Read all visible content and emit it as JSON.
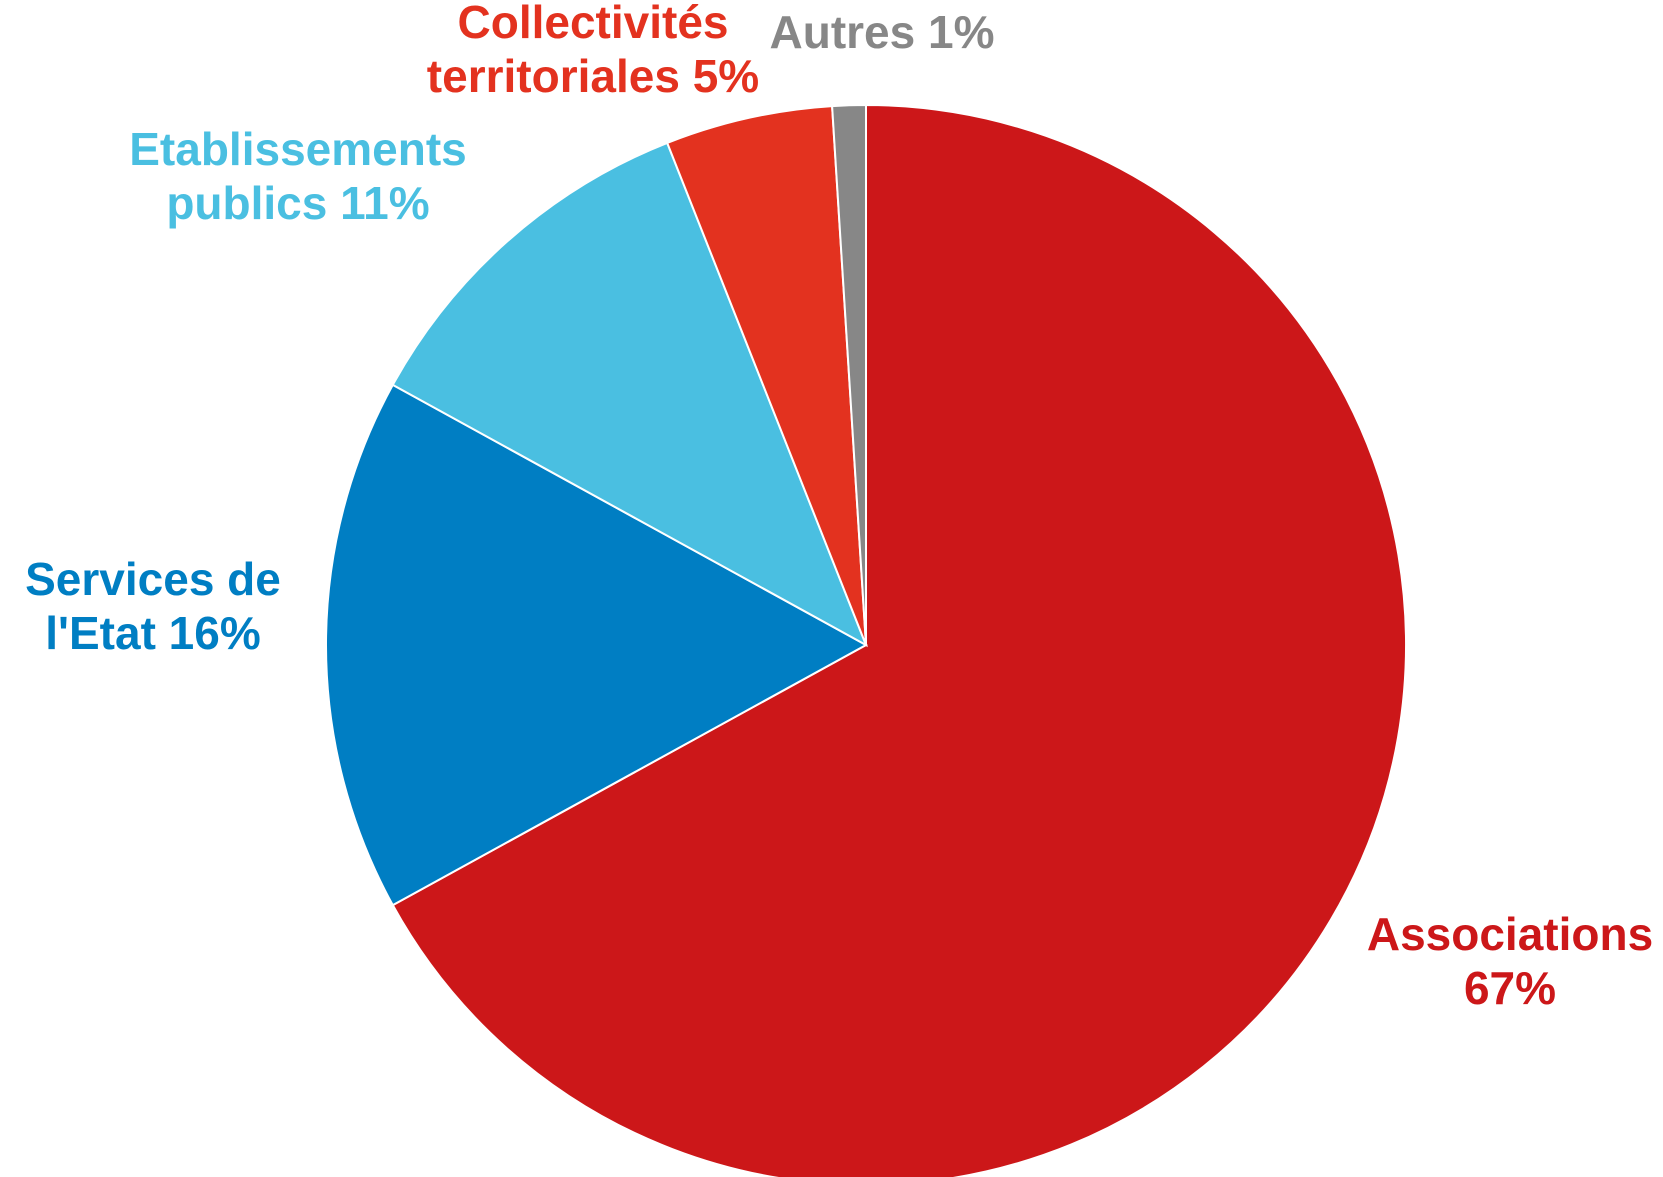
{
  "chart_data": {
    "type": "pie",
    "title": "",
    "start_angle": "12 o'clock, clockwise",
    "slices": [
      {
        "name": "Associations",
        "value": 67,
        "label_lines": [
          "Associations",
          "67%"
        ],
        "color": "#CC1719"
      },
      {
        "name": "Services de l'Etat",
        "value": 16,
        "label_lines": [
          "Services de",
          "l'Etat 16%"
        ],
        "color": "#007EC3"
      },
      {
        "name": "Etablissements publics",
        "value": 11,
        "label_lines": [
          "Etablissements",
          "publics 11%"
        ],
        "color": "#4ABFE1"
      },
      {
        "name": "Collectivités territoriales",
        "value": 5,
        "label_lines": [
          "Collectivités",
          "territoriales 5%"
        ],
        "color": "#E3321F"
      },
      {
        "name": "Autres",
        "value": 1,
        "label_lines": [
          "Autres 1%"
        ],
        "color": "#878787"
      }
    ]
  }
}
